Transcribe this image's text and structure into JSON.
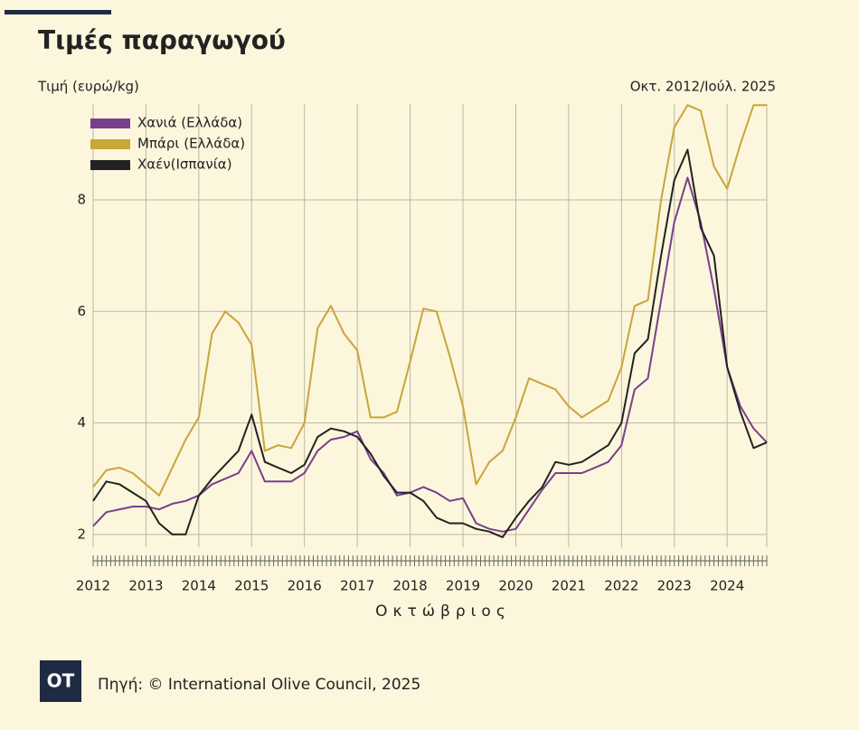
{
  "chart_data": {
    "type": "line",
    "title": "Τιμές παραγωγού",
    "y_label": "Τιμή (ευρώ/kg)",
    "period_note": "Οκτ. 2012/Ιούλ. 2025",
    "x_label": "Οκτώβριος",
    "source": "Πηγή: © International Olive Council, 2025",
    "logo": "OT",
    "x": [
      2012,
      2012.25,
      2012.5,
      2012.75,
      2013,
      2013.25,
      2013.5,
      2013.75,
      2014,
      2014.25,
      2014.5,
      2014.75,
      2015,
      2015.25,
      2015.5,
      2015.75,
      2016,
      2016.25,
      2016.5,
      2016.75,
      2017,
      2017.25,
      2017.5,
      2017.75,
      2018,
      2018.25,
      2018.5,
      2018.75,
      2019,
      2019.25,
      2019.5,
      2019.75,
      2020,
      2020.25,
      2020.5,
      2020.75,
      2021,
      2021.25,
      2021.5,
      2021.75,
      2022,
      2022.25,
      2022.5,
      2022.75,
      2023,
      2023.25,
      2023.5,
      2023.75,
      2024,
      2024.25,
      2024.5,
      2024.75
    ],
    "series": [
      {
        "name": "Χανιά (Ελλάδα)",
        "color": "#7a3f8c",
        "values": [
          2.15,
          2.4,
          2.45,
          2.5,
          2.5,
          2.45,
          2.55,
          2.6,
          2.7,
          2.9,
          3.0,
          3.1,
          3.5,
          2.95,
          2.95,
          2.95,
          3.1,
          3.5,
          3.7,
          3.75,
          3.85,
          3.35,
          3.1,
          2.7,
          2.75,
          2.85,
          2.75,
          2.6,
          2.65,
          2.2,
          2.1,
          2.05,
          2.1,
          2.45,
          2.8,
          3.1,
          3.1,
          3.1,
          3.2,
          3.3,
          3.6,
          4.6,
          4.8,
          6.2,
          7.6,
          8.4,
          7.6,
          6.4,
          5.0,
          4.3,
          3.9,
          3.65
        ]
      },
      {
        "name": "Μπάρι (Ελλάδα)",
        "color": "#c9a53a",
        "values": [
          2.85,
          3.15,
          3.2,
          3.1,
          2.9,
          2.7,
          3.2,
          3.7,
          4.1,
          5.6,
          6.0,
          5.8,
          5.4,
          3.5,
          3.6,
          3.55,
          4.0,
          5.7,
          6.1,
          5.6,
          5.3,
          4.1,
          4.1,
          4.2,
          5.1,
          6.05,
          6.0,
          5.2,
          4.3,
          2.9,
          3.3,
          3.5,
          4.1,
          4.8,
          4.7,
          4.6,
          4.3,
          4.1,
          4.25,
          4.4,
          5.0,
          6.1,
          6.2,
          8.0,
          9.3,
          9.7,
          9.6,
          8.6,
          8.2,
          9.0,
          9.7,
          9.7
        ]
      },
      {
        "name": "Χαέν(Ισπανία)",
        "color": "#222222",
        "values": [
          2.6,
          2.95,
          2.9,
          2.75,
          2.6,
          2.2,
          2.0,
          2.0,
          2.7,
          3.0,
          3.25,
          3.5,
          4.15,
          3.3,
          3.2,
          3.1,
          3.25,
          3.75,
          3.9,
          3.85,
          3.75,
          3.45,
          3.05,
          2.75,
          2.75,
          2.6,
          2.3,
          2.2,
          2.2,
          2.1,
          2.05,
          1.95,
          2.3,
          2.6,
          2.85,
          3.3,
          3.25,
          3.3,
          3.45,
          3.6,
          4.0,
          5.25,
          5.5,
          7.0,
          8.35,
          8.9,
          7.5,
          7.0,
          5.0,
          4.2,
          3.55,
          3.65
        ]
      }
    ],
    "xlim": [
      2012,
      2024.75
    ],
    "xticks": [
      2012,
      2013,
      2014,
      2015,
      2016,
      2017,
      2018,
      2019,
      2020,
      2021,
      2022,
      2023,
      2024
    ],
    "ylim": [
      1.77,
      9.72
    ],
    "yticks": [
      2,
      4,
      6,
      8
    ],
    "grid": true,
    "legend": "top-left"
  }
}
